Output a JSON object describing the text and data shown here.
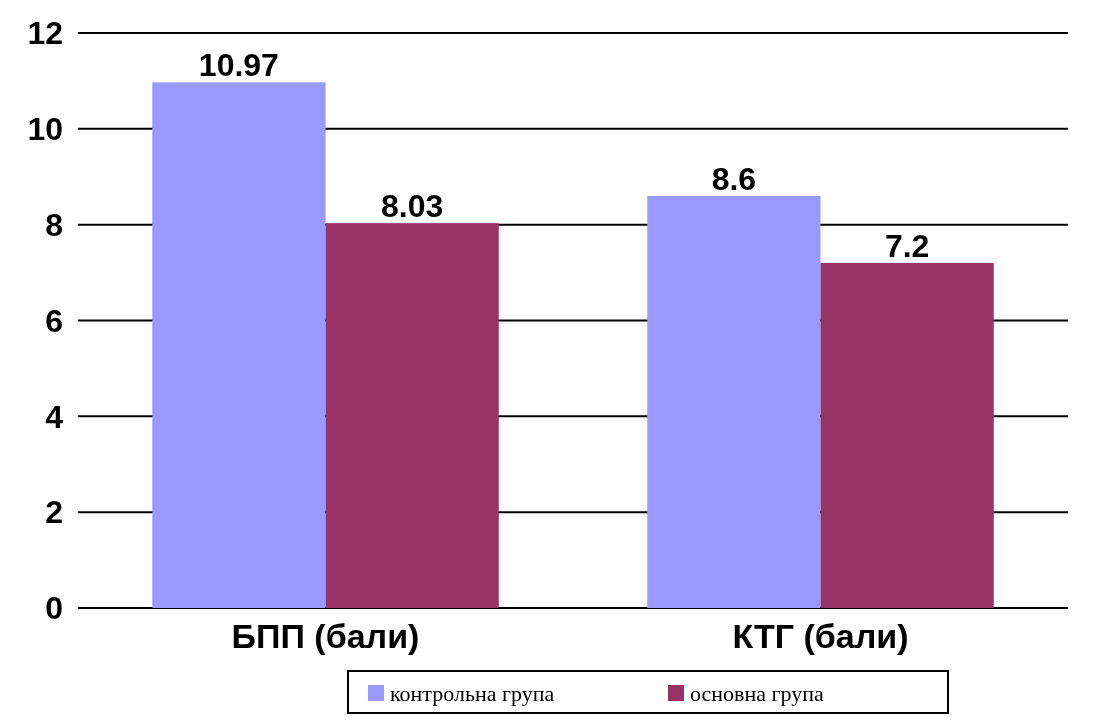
{
  "chart_data": {
    "type": "bar",
    "categories": [
      "БПП (бали)",
      "КТГ (бали)"
    ],
    "series": [
      {
        "name": "контрольна група",
        "color": "#9999ff",
        "values": [
          10.97,
          8.6
        ]
      },
      {
        "name": "основна група",
        "color": "#993366",
        "values": [
          8.03,
          7.2
        ]
      }
    ],
    "ylim": [
      0,
      12
    ],
    "yticks": [
      0,
      2,
      4,
      6,
      8,
      10,
      12
    ],
    "grid": "y",
    "legend": "bottom",
    "data_labels": true
  }
}
